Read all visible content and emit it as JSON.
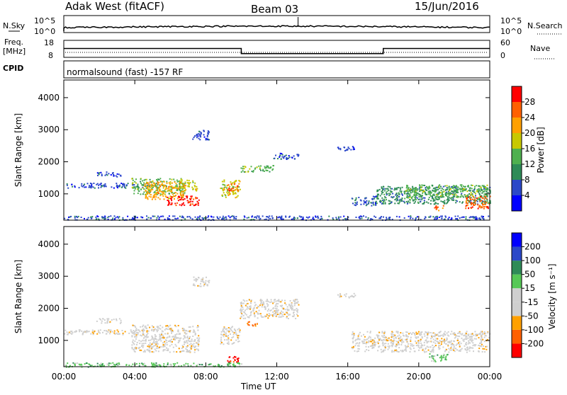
{
  "header": {
    "station": "Adak West (fitACF)",
    "beam": "Beam 03",
    "date": "15/Jun/2016"
  },
  "status_panel": {
    "left_label_top": "N.Sky",
    "right_label_top": "N.Search",
    "left_ticks": [
      "10^5",
      "10^0"
    ],
    "right_ticks": [
      "10^5",
      "10^0"
    ],
    "freq_label_line1": "Freq.",
    "freq_label_line2": "[MHz]",
    "freq_ticks": [
      "18",
      "8"
    ],
    "nave_ticks": [
      "60",
      "0"
    ],
    "nave_label": "Nave",
    "cpid_label": "CPID",
    "cpid_text": "normalsound (fast) -157 RF",
    "freq_profile": {
      "high_mhz": 13.2,
      "low_mhz": 10.2,
      "low_start_hour": 10.0,
      "low_end_hour": 18.0
    }
  },
  "colors": {
    "power": [
      "#0000ff",
      "#2b48c8",
      "#2e8b57",
      "#4fb04f",
      "#c8c800",
      "#ffa000",
      "#ff6000",
      "#ff0000"
    ],
    "velocity": [
      "#ff0000",
      "#ff6000",
      "#ffa000",
      "#cfcfcf",
      "#cfcfcf",
      "#56c856",
      "#2e8b57",
      "#2b48c8",
      "#0000ff"
    ]
  },
  "chart_data": [
    {
      "type": "heatmap",
      "name": "power",
      "ylabel": "Slant Range [km]",
      "yticks": [
        "1000",
        "2000",
        "3000",
        "4000"
      ],
      "ylim": [
        180,
        4550
      ],
      "colorbar_label": "Power [dB]",
      "colorbar_ticks": [
        "4",
        "8",
        "12",
        "16",
        "20",
        "24",
        "28"
      ],
      "regions": [
        {
          "t0": 0.0,
          "t1": 4.8,
          "r0": 1200,
          "r1": 1350,
          "level": 1
        },
        {
          "t0": 1.8,
          "t1": 3.2,
          "r0": 1550,
          "r1": 1700,
          "level": 1
        },
        {
          "t0": 3.8,
          "t1": 6.8,
          "r0": 1000,
          "r1": 1500,
          "level": 3
        },
        {
          "t0": 4.5,
          "t1": 6.8,
          "r0": 850,
          "r1": 1400,
          "level": 5
        },
        {
          "t0": 5.8,
          "t1": 7.6,
          "r0": 650,
          "r1": 950,
          "level": 7
        },
        {
          "t0": 6.5,
          "t1": 7.5,
          "r0": 1100,
          "r1": 1450,
          "level": 4
        },
        {
          "t0": 8.8,
          "t1": 9.9,
          "r0": 900,
          "r1": 1450,
          "level": 4
        },
        {
          "t0": 9.2,
          "t1": 9.8,
          "r0": 1100,
          "r1": 1350,
          "level": 6
        },
        {
          "t0": 9.9,
          "t1": 11.8,
          "r0": 1700,
          "r1": 1900,
          "level": 3
        },
        {
          "t0": 11.8,
          "t1": 13.2,
          "r0": 2100,
          "r1": 2300,
          "level": 1
        },
        {
          "t0": 7.2,
          "t1": 8.2,
          "r0": 2700,
          "r1": 3000,
          "level": 1
        },
        {
          "t0": 16.2,
          "t1": 17.6,
          "r0": 650,
          "r1": 950,
          "level": 1
        },
        {
          "t0": 17.6,
          "t1": 24.0,
          "r0": 700,
          "r1": 1250,
          "level": 2
        },
        {
          "t0": 19.2,
          "t1": 24.0,
          "r0": 900,
          "r1": 1300,
          "level": 3
        },
        {
          "t0": 20.8,
          "t1": 21.4,
          "r0": 500,
          "r1": 650,
          "level": 6
        },
        {
          "t0": 22.6,
          "t1": 24.0,
          "r0": 550,
          "r1": 950,
          "level": 6
        },
        {
          "t0": 0.0,
          "t1": 24.0,
          "r0": 200,
          "r1": 330,
          "level": 1
        },
        {
          "t0": 15.4,
          "t1": 16.4,
          "r0": 2350,
          "r1": 2500,
          "level": 1
        }
      ]
    },
    {
      "type": "heatmap",
      "name": "velocity",
      "ylabel": "Slant Range [km]",
      "yticks": [
        "1000",
        "2000",
        "3000",
        "4000"
      ],
      "ylim": [
        180,
        4550
      ],
      "xlabel": "Time UT",
      "xticks": [
        "00:00",
        "04:00",
        "08:00",
        "12:00",
        "16:00",
        "20:00",
        "00:00"
      ],
      "xlim_hours": [
        0,
        24
      ],
      "colorbar_label": "Velocity [m s⁻¹]",
      "colorbar_ticks": [
        "-200",
        "-100",
        "-50",
        "-15",
        "15",
        "50",
        "100",
        "200"
      ],
      "regions": [
        {
          "t0": 0.0,
          "t1": 4.8,
          "r0": 1200,
          "r1": 1350,
          "level": 3
        },
        {
          "t0": 1.8,
          "t1": 3.2,
          "r0": 1550,
          "r1": 1700,
          "level": 3
        },
        {
          "t0": 3.8,
          "t1": 7.6,
          "r0": 650,
          "r1": 1500,
          "level": 3
        },
        {
          "t0": 8.8,
          "t1": 9.9,
          "r0": 900,
          "r1": 1450,
          "level": 3
        },
        {
          "t0": 9.9,
          "t1": 13.2,
          "r0": 1700,
          "r1": 2300,
          "level": 3
        },
        {
          "t0": 7.2,
          "t1": 8.2,
          "r0": 2700,
          "r1": 3000,
          "level": 3
        },
        {
          "t0": 10.3,
          "t1": 10.9,
          "r0": 1450,
          "r1": 1600,
          "level": 1
        },
        {
          "t0": 9.2,
          "t1": 9.9,
          "r0": 300,
          "r1": 550,
          "level": 0
        },
        {
          "t0": 16.2,
          "t1": 24.0,
          "r0": 650,
          "r1": 1300,
          "level": 3
        },
        {
          "t0": 0.0,
          "t1": 10.0,
          "r0": 190,
          "r1": 320,
          "level": 5
        },
        {
          "t0": 20.5,
          "t1": 21.6,
          "r0": 350,
          "r1": 600,
          "level": 5
        },
        {
          "t0": 15.4,
          "t1": 16.4,
          "r0": 2350,
          "r1": 2500,
          "level": 3
        }
      ]
    }
  ]
}
